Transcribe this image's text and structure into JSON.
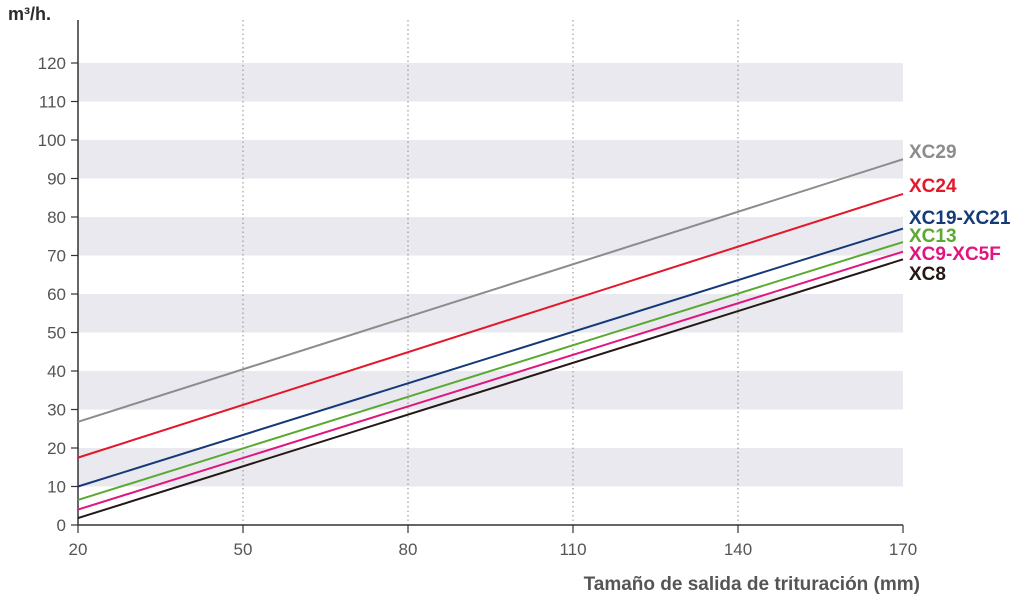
{
  "chart_data": {
    "type": "line",
    "ylabel": "m³/h.",
    "xlabel": "Tamaño de salida de trituración (mm)",
    "xlim": [
      20,
      170
    ],
    "ylim": [
      0,
      120
    ],
    "xticks": [
      20,
      50,
      80,
      110,
      140,
      170
    ],
    "yticks": [
      0,
      10,
      20,
      30,
      40,
      50,
      60,
      70,
      80,
      90,
      100,
      110,
      120
    ],
    "grid": "vertical dotted lines; alternating horizontal bands",
    "legend_placement": "labels at right end of lines",
    "series": [
      {
        "name": "XC29",
        "color": "#8c8c8c",
        "x": [
          20,
          170
        ],
        "y": [
          26.8,
          95
        ]
      },
      {
        "name": "XC24",
        "color": "#e3182a",
        "x": [
          20,
          170
        ],
        "y": [
          17.5,
          86
        ]
      },
      {
        "name": "XC19-XC21",
        "color": "#153a78",
        "x": [
          20,
          170
        ],
        "y": [
          10,
          77
        ]
      },
      {
        "name": "XC13",
        "color": "#5aaa32",
        "x": [
          20,
          170
        ],
        "y": [
          6.5,
          73.5
        ]
      },
      {
        "name": "XC9-XC5F",
        "color": "#e0157f",
        "x": [
          20,
          170
        ],
        "y": [
          4,
          71
        ]
      },
      {
        "name": "XC8",
        "color": "#231815",
        "x": [
          20,
          170
        ],
        "y": [
          1.8,
          69
        ]
      }
    ]
  }
}
